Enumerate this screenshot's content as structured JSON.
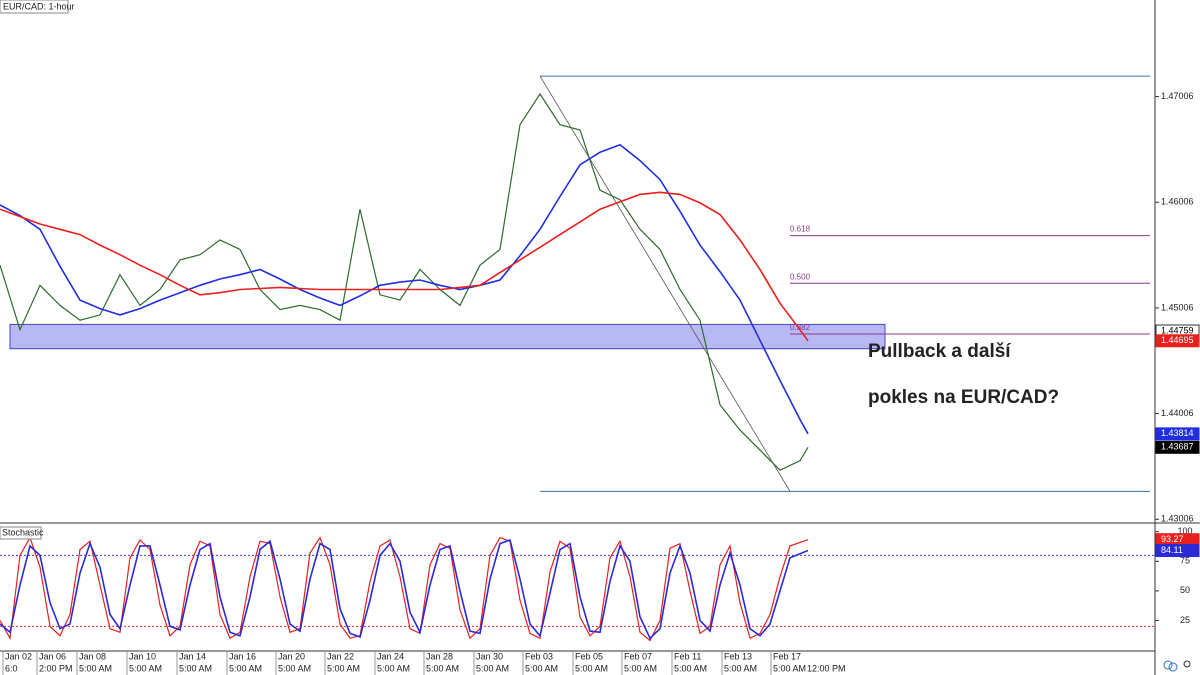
{
  "chart_data": [
    {
      "type": "line",
      "title": "EUR/CAD: 1-hour",
      "annotation": [
        "Pullback a další",
        "pokles na EUR/CAD?"
      ],
      "x": [
        0,
        20,
        40,
        60,
        80,
        100,
        120,
        140,
        160,
        180,
        200,
        220,
        240,
        260,
        280,
        300,
        320,
        340,
        360,
        380,
        400,
        420,
        440,
        460,
        480,
        500,
        520,
        540,
        560,
        580,
        600,
        620,
        640,
        660,
        680,
        700,
        720,
        740,
        760,
        780,
        800,
        808
      ],
      "series": [
        {
          "color": "#2e6b2e",
          "values": [
            1.4541,
            1.448,
            1.4522,
            1.4503,
            1.4489,
            1.4494,
            1.4532,
            1.4503,
            1.4518,
            1.4546,
            1.4551,
            1.4565,
            1.4556,
            1.4518,
            1.4499,
            1.4503,
            1.4499,
            1.4489,
            1.4594,
            1.4513,
            1.4508,
            1.4537,
            1.4518,
            1.4503,
            1.4541,
            1.4556,
            1.4674,
            1.4703,
            1.4674,
            1.4669,
            1.4612,
            1.4603,
            1.4575,
            1.4556,
            1.4518,
            1.4489,
            1.4409,
            1.4385,
            1.4366,
            1.4347,
            1.4356,
            1.43687
          ]
        },
        {
          "color": "#1f2fe0",
          "values": [
            1.4598,
            1.4588,
            1.4575,
            1.454,
            1.4508,
            1.45,
            1.4494,
            1.45,
            1.4508,
            1.4515,
            1.4522,
            1.4528,
            1.4532,
            1.4537,
            1.4528,
            1.4518,
            1.451,
            1.4503,
            1.4512,
            1.4522,
            1.4525,
            1.4527,
            1.4522,
            1.4518,
            1.4522,
            1.4527,
            1.455,
            1.4575,
            1.4606,
            1.4636,
            1.4648,
            1.4655,
            1.464,
            1.4622,
            1.4592,
            1.456,
            1.4535,
            1.4508,
            1.447,
            1.4432,
            1.4395,
            1.43814
          ]
        },
        {
          "color": "#e8201e",
          "values": [
            1.4594,
            1.4587,
            1.458,
            1.4575,
            1.457,
            1.456,
            1.4551,
            1.4541,
            1.4532,
            1.4522,
            1.4513,
            1.4515,
            1.4518,
            1.4519,
            1.452,
            1.4519,
            1.4518,
            1.4518,
            1.4518,
            1.4518,
            1.4518,
            1.4518,
            1.4518,
            1.452,
            1.4522,
            1.4534,
            1.4546,
            1.4558,
            1.457,
            1.4582,
            1.4594,
            1.4601,
            1.4608,
            1.461,
            1.4608,
            1.46,
            1.4589,
            1.4565,
            1.4537,
            1.4505,
            1.448,
            1.44695
          ]
        }
      ],
      "zone": {
        "values": [
          1.4462,
          1.4485
        ],
        "x": [
          10,
          885
        ],
        "color": "#8888ee"
      },
      "hlines": [
        {
          "value": 1.472,
          "x": [
            540,
            1150
          ],
          "color": "#3a6fb0"
        },
        {
          "value": 1.4327,
          "x": [
            540,
            1150
          ],
          "color": "#3a6fb0"
        }
      ],
      "trendline": {
        "x": [
          540,
          790
        ],
        "values": [
          1.472,
          1.4327
        ],
        "color": "#555555"
      },
      "fibs": [
        {
          "value": 1.4569,
          "label": "0.618"
        },
        {
          "value": 1.4524,
          "label": "0.500"
        },
        {
          "value": 1.44759,
          "label": "0.382"
        }
      ],
      "fib_x": [
        790,
        1150
      ],
      "fib_color": "#8a3a8a",
      "xlim": [
        0,
        1155
      ],
      "ylim": [
        1.4298,
        1.4792
      ],
      "yticks": [
        1.47006,
        1.46006,
        1.45006,
        1.44006,
        1.43006
      ]
    },
    {
      "type": "line",
      "title": "Stochastic",
      "x": [
        0,
        10,
        20,
        30,
        40,
        50,
        60,
        70,
        80,
        90,
        100,
        110,
        120,
        130,
        140,
        150,
        160,
        170,
        180,
        190,
        200,
        210,
        220,
        230,
        240,
        250,
        260,
        270,
        280,
        290,
        300,
        310,
        320,
        330,
        340,
        350,
        360,
        370,
        380,
        390,
        400,
        410,
        420,
        430,
        440,
        450,
        460,
        470,
        480,
        490,
        500,
        510,
        520,
        530,
        540,
        550,
        560,
        570,
        580,
        590,
        600,
        610,
        620,
        630,
        640,
        650,
        660,
        670,
        680,
        690,
        700,
        710,
        720,
        730,
        740,
        750,
        760,
        770,
        780,
        790,
        808
      ],
      "series": [
        {
          "color": "#e8201e",
          "values": [
            25,
            10,
            80,
            95,
            70,
            20,
            12,
            30,
            85,
            92,
            55,
            18,
            15,
            78,
            93,
            85,
            38,
            12,
            20,
            72,
            92,
            88,
            30,
            10,
            15,
            62,
            92,
            90,
            45,
            15,
            18,
            82,
            95,
            72,
            22,
            10,
            12,
            58,
            88,
            93,
            62,
            18,
            14,
            72,
            90,
            86,
            34,
            10,
            18,
            80,
            95,
            92,
            42,
            14,
            10,
            66,
            92,
            86,
            28,
            12,
            20,
            78,
            92,
            62,
            15,
            8,
            25,
            86,
            90,
            50,
            14,
            20,
            72,
            88,
            40,
            10,
            14,
            30,
            62,
            88,
            93.27
          ]
        },
        {
          "color": "#2a2ad8",
          "values": [
            22,
            15,
            55,
            88,
            80,
            40,
            18,
            22,
            65,
            90,
            70,
            30,
            18,
            55,
            88,
            88,
            55,
            20,
            17,
            55,
            85,
            90,
            45,
            15,
            12,
            45,
            85,
            92,
            60,
            22,
            16,
            60,
            90,
            85,
            35,
            14,
            11,
            42,
            80,
            90,
            75,
            32,
            15,
            55,
            85,
            88,
            50,
            16,
            14,
            60,
            90,
            93,
            60,
            22,
            12,
            48,
            85,
            90,
            45,
            16,
            15,
            58,
            88,
            75,
            28,
            10,
            18,
            65,
            88,
            65,
            25,
            16,
            55,
            82,
            55,
            18,
            12,
            22,
            50,
            78,
            84.11
          ]
        }
      ],
      "levels": [
        {
          "value": 80,
          "color": "#3a3acc"
        },
        {
          "value": 20,
          "color": "#dd3333"
        }
      ],
      "xlim": [
        0,
        1155
      ],
      "ylim": [
        0,
        104
      ],
      "yticks": [
        100,
        75,
        50,
        25
      ],
      "xticks": [
        {
          "value": 3,
          "label": "Jan 02"
        },
        {
          "value": 37,
          "label": "Jan 06"
        },
        {
          "value": 77,
          "label": "Jan 08"
        },
        {
          "value": 127,
          "label": "Jan 10"
        },
        {
          "value": 177,
          "label": "Jan 14"
        },
        {
          "value": 227,
          "label": "Jan 16"
        },
        {
          "value": 276,
          "label": "Jan 20"
        },
        {
          "value": 325,
          "label": "Jan 22"
        },
        {
          "value": 375,
          "label": "Jan 24"
        },
        {
          "value": 424,
          "label": "Jan 28"
        },
        {
          "value": 474,
          "label": "Jan 30"
        },
        {
          "value": 523,
          "label": "Feb 03"
        },
        {
          "value": 573,
          "label": "Feb 05"
        },
        {
          "value": 622,
          "label": "Feb 07"
        },
        {
          "value": 672,
          "label": "Feb 11"
        },
        {
          "value": 722,
          "label": "Feb 13"
        },
        {
          "value": 771,
          "label": "Feb 17"
        }
      ],
      "xticks_time": [
        {
          "value": 3,
          "label": "6:0"
        },
        {
          "value": 37,
          "label": "2:00 PM"
        },
        {
          "value": 77,
          "label": "5:00 AM"
        },
        {
          "value": 127,
          "label": "5:00 AM"
        },
        {
          "value": 177,
          "label": "5:00 AM"
        },
        {
          "value": 227,
          "label": "5:00 AM"
        },
        {
          "value": 276,
          "label": "5:00 AM"
        },
        {
          "value": 325,
          "label": "5:00 AM"
        },
        {
          "value": 375,
          "label": "5:00 AM"
        },
        {
          "value": 424,
          "label": "5:00 AM"
        },
        {
          "value": 474,
          "label": "5:00 AM"
        },
        {
          "value": 523,
          "label": "5:00 AM"
        },
        {
          "value": 573,
          "label": "5:00 AM"
        },
        {
          "value": 622,
          "label": "5:00 AM"
        },
        {
          "value": 672,
          "label": "5:00 AM"
        },
        {
          "value": 722,
          "label": "5:00 AM"
        },
        {
          "value": 771,
          "label": "5:00 AM"
        },
        {
          "value": 805,
          "label": "12:00 PM"
        }
      ]
    }
  ]
}
